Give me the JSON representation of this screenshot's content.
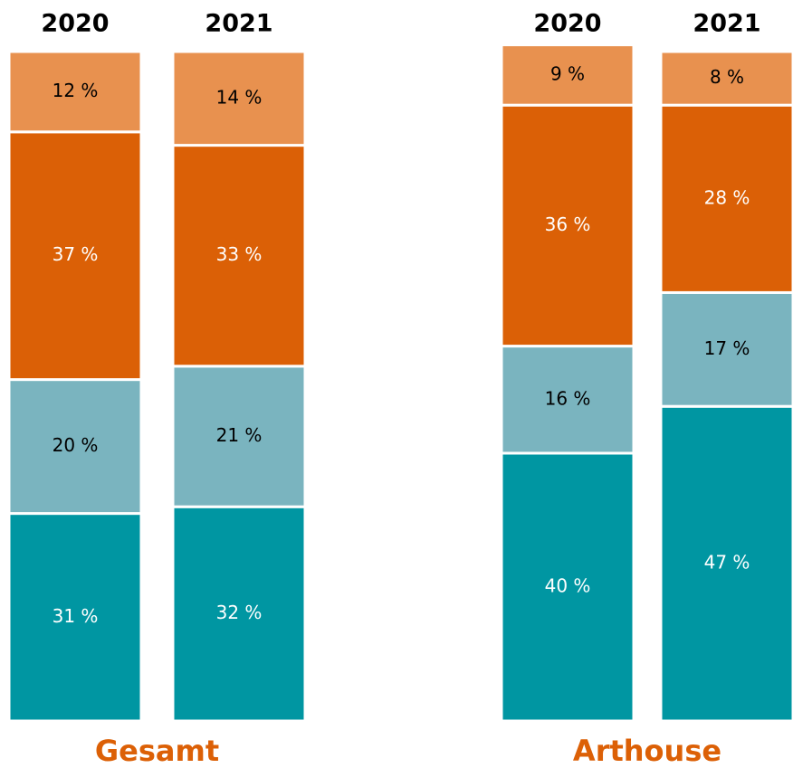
{
  "chart_data": [
    {
      "type": "stacked_bar",
      "title": "Gesamt",
      "title_color": "#dc6006",
      "categories": [
        "2020",
        "2021"
      ],
      "ylim": [
        0,
        100
      ],
      "series": [
        {
          "color": "#0096a2",
          "label_color": "#ffffff",
          "values": [
            31,
            32
          ],
          "value_labels": [
            "31 %",
            "32 %"
          ]
        },
        {
          "color": "#7ab4bf",
          "label_color": "#000000",
          "values": [
            20,
            21
          ],
          "value_labels": [
            "20 %",
            "21 %"
          ]
        },
        {
          "color": "#db6006",
          "label_color": "#ffffff",
          "values": [
            37,
            33
          ],
          "value_labels": [
            "37 %",
            "33 %"
          ]
        },
        {
          "color": "#e8914f",
          "label_color": "#000000",
          "values": [
            12,
            14
          ],
          "value_labels": [
            "12 %",
            "14 %"
          ]
        }
      ]
    },
    {
      "type": "stacked_bar",
      "title": "Arthouse",
      "title_color": "#dc6006",
      "categories": [
        "2020",
        "2021"
      ],
      "ylim": [
        0,
        100
      ],
      "series": [
        {
          "color": "#0096a2",
          "label_color": "#ffffff",
          "values": [
            40,
            47
          ],
          "value_labels": [
            "40 %",
            "47 %"
          ]
        },
        {
          "color": "#7ab4bf",
          "label_color": "#000000",
          "values": [
            16,
            17
          ],
          "value_labels": [
            "16 %",
            "17 %"
          ]
        },
        {
          "color": "#db6006",
          "label_color": "#ffffff",
          "values": [
            36,
            28
          ],
          "value_labels": [
            "36 %",
            "28 %"
          ]
        },
        {
          "color": "#e8914f",
          "label_color": "#000000",
          "values": [
            9,
            8
          ],
          "value_labels": [
            "9 %",
            "8 %"
          ]
        }
      ]
    }
  ]
}
